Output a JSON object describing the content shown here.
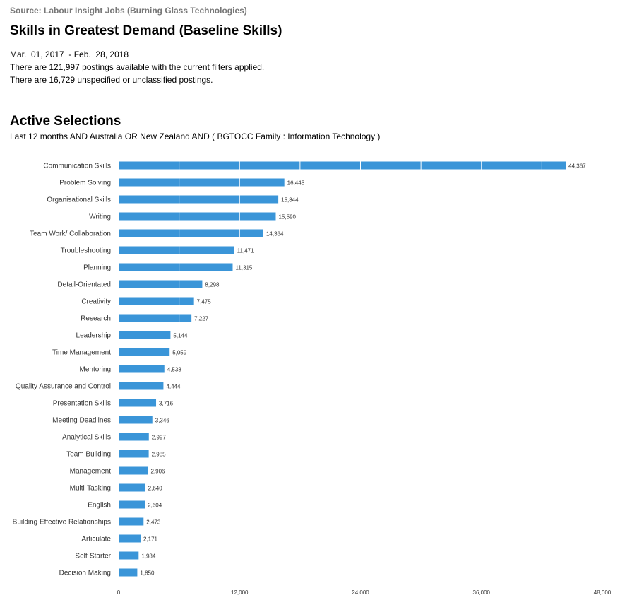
{
  "header": {
    "source": "Source: Labour Insight Jobs (Burning Glass Technologies)",
    "title": "Skills in Greatest Demand (Baseline Skills)",
    "date_range": "Mar.  01, 2017  - Feb.  28, 2018",
    "postings_line": "There are 121,997 postings available with the current filters applied.",
    "unspecified_line": "There are 16,729 unspecified or unclassified postings."
  },
  "selections": {
    "title": "Active Selections",
    "description": "Last 12 months AND Australia OR New Zealand AND ( BGTOCC Family : Information Technology )"
  },
  "colors": {
    "bar": "#3a95d8",
    "label": "#333333",
    "grid": "#ffffff"
  },
  "chart_data": {
    "type": "bar",
    "orientation": "horizontal",
    "categories": [
      "Communication Skills",
      "Problem Solving",
      "Organisational Skills",
      "Writing",
      "Team Work/ Collaboration",
      "Troubleshooting",
      "Planning",
      "Detail-Orientated",
      "Creativity",
      "Research",
      "Leadership",
      "Time Management",
      "Mentoring",
      "Quality Assurance and Control",
      "Presentation Skills",
      "Meeting Deadlines",
      "Analytical Skills",
      "Team Building",
      "Management",
      "Multi-Tasking",
      "English",
      "Building Effective Relationships",
      "Articulate",
      "Self-Starter",
      "Decision Making"
    ],
    "values": [
      44367,
      16445,
      15844,
      15590,
      14364,
      11471,
      11315,
      8298,
      7475,
      7227,
      5144,
      5059,
      4538,
      4444,
      3716,
      3346,
      2997,
      2985,
      2906,
      2640,
      2604,
      2473,
      2171,
      1984,
      1850
    ],
    "value_labels": [
      "44,367",
      "16,445",
      "15,844",
      "15,590",
      "14,364",
      "11,471",
      "11,315",
      "8,298",
      "7,475",
      "7,227",
      "5,144",
      "5,059",
      "4,538",
      "4,444",
      "3,716",
      "3,346",
      "2,997",
      "2,985",
      "2,906",
      "2,640",
      "2,604",
      "2,473",
      "2,171",
      "1,984",
      "1,850"
    ],
    "xlim": [
      0,
      48000
    ],
    "xticks": [
      0,
      12000,
      24000,
      36000,
      48000
    ],
    "xtick_labels": [
      "0",
      "12,000",
      "24,000",
      "36,000",
      "48,000"
    ],
    "grid": true
  }
}
